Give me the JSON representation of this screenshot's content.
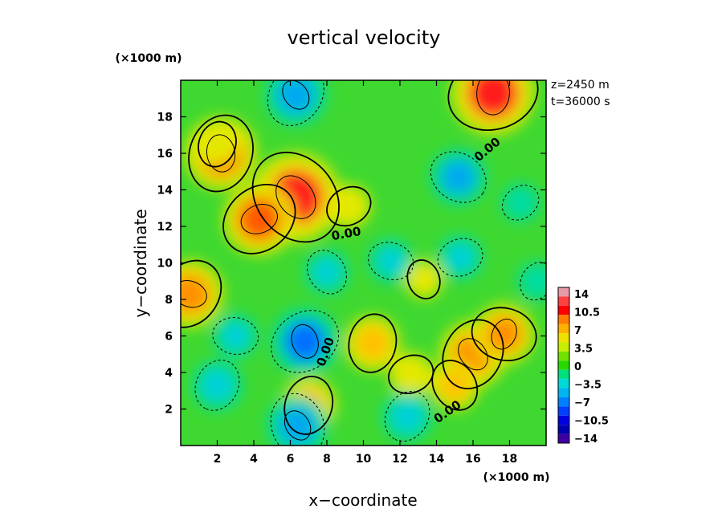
{
  "chart_data": {
    "type": "heatmap",
    "title": "vertical velocity",
    "xlabel": "x−coordinate",
    "ylabel": "y−coordinate",
    "x_unit": "(×1000 m)",
    "y_unit": "(×1000 m)",
    "xlim": [
      0,
      20
    ],
    "ylim": [
      0,
      20
    ],
    "x_ticks": [
      "2",
      "4",
      "6",
      "8",
      "10",
      "12",
      "14",
      "16",
      "18"
    ],
    "y_ticks": [
      "2",
      "4",
      "6",
      "8",
      "10",
      "12",
      "14",
      "16",
      "18"
    ],
    "annotation_z": "z=2450 m",
    "annotation_t": "t=36000 s",
    "contour_labels": [
      "0.00",
      "0.00",
      "0.00",
      "0.00"
    ],
    "colorbar": {
      "labels": [
        "14",
        "10.5",
        "7",
        "3.5",
        "0",
        "−3.5",
        "−7",
        "−10.5",
        "−14"
      ],
      "colors": [
        "#e79aa8",
        "#ff4040",
        "#ff0000",
        "#ff7d00",
        "#ffb100",
        "#f0e000",
        "#c8ee00",
        "#70e000",
        "#28d800",
        "#00e080",
        "#00d8d8",
        "#00b4f0",
        "#0080ff",
        "#0040ff",
        "#0000e0",
        "#0000b0",
        "#4000a0"
      ]
    },
    "features": [
      {
        "x": 6.3,
        "y": 13.6,
        "value": 12
      },
      {
        "x": 4.3,
        "y": 12.4,
        "value": 9
      },
      {
        "x": 2.2,
        "y": 16.0,
        "value": 9
      },
      {
        "x": 17.1,
        "y": 19.3,
        "value": 11
      },
      {
        "x": 0.5,
        "y": 8.3,
        "value": 8
      },
      {
        "x": 16.0,
        "y": 5.0,
        "value": 8
      },
      {
        "x": 17.7,
        "y": 6.1,
        "value": 7
      },
      {
        "x": 10.5,
        "y": 5.6,
        "value": 6
      },
      {
        "x": 7.0,
        "y": 2.2,
        "value": 6
      },
      {
        "x": 12.6,
        "y": 3.9,
        "value": 4
      },
      {
        "x": 15.0,
        "y": 3.3,
        "value": 5
      },
      {
        "x": 2.0,
        "y": 16.5,
        "value": 4
      },
      {
        "x": 9.2,
        "y": 13.1,
        "value": 4
      },
      {
        "x": 13.3,
        "y": 9.1,
        "value": 3
      },
      {
        "x": 6.8,
        "y": 5.7,
        "value": -8
      },
      {
        "x": 6.4,
        "y": 1.1,
        "value": -7
      },
      {
        "x": 6.3,
        "y": 19.2,
        "value": -7
      },
      {
        "x": 15.2,
        "y": 14.7,
        "value": -6
      },
      {
        "x": 3.0,
        "y": 6.0,
        "value": -4
      },
      {
        "x": 2.0,
        "y": 3.3,
        "value": -5
      },
      {
        "x": 12.4,
        "y": 1.6,
        "value": -5
      },
      {
        "x": 8.0,
        "y": 9.5,
        "value": -4
      },
      {
        "x": 15.3,
        "y": 10.3,
        "value": -4
      },
      {
        "x": 18.6,
        "y": 13.3,
        "value": -3
      },
      {
        "x": 11.5,
        "y": 10.1,
        "value": -4
      },
      {
        "x": 19.5,
        "y": 9.0,
        "value": -3
      }
    ]
  }
}
